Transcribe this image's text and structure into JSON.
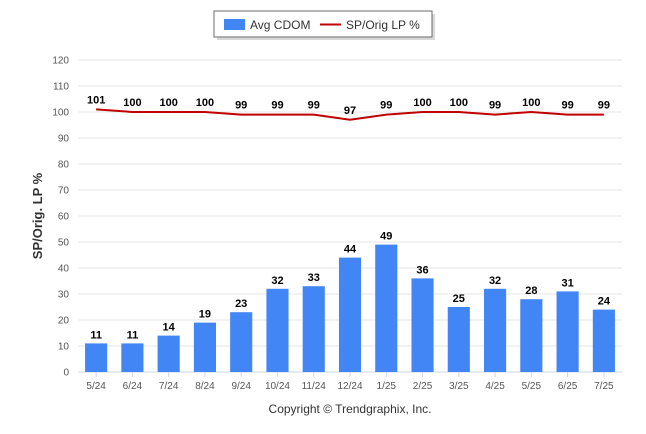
{
  "chart_data": {
    "type": "bar",
    "categories": [
      "5/24",
      "6/24",
      "7/24",
      "8/24",
      "9/24",
      "10/24",
      "11/24",
      "12/24",
      "1/25",
      "2/25",
      "3/25",
      "4/25",
      "5/25",
      "6/25",
      "7/25"
    ],
    "series": [
      {
        "name": "Avg CDOM",
        "type": "bar",
        "color": "#4285f4",
        "values": [
          11,
          11,
          14,
          19,
          23,
          32,
          33,
          44,
          49,
          36,
          25,
          32,
          28,
          31,
          24
        ]
      },
      {
        "name": "SP/Orig LP %",
        "type": "line",
        "color": "#c00000",
        "values": [
          101,
          100,
          100,
          100,
          99,
          99,
          99,
          97,
          99,
          100,
          100,
          99,
          100,
          99,
          99
        ]
      }
    ],
    "ylabel": "SP/Orig. LP %",
    "ylim": [
      0,
      120
    ],
    "yticks": [
      0,
      10,
      20,
      30,
      40,
      50,
      60,
      70,
      80,
      90,
      100,
      110,
      120
    ],
    "grid": true,
    "legend": "top-center"
  },
  "footer": {
    "copyright": "Copyright © Trendgraphix, Inc."
  }
}
